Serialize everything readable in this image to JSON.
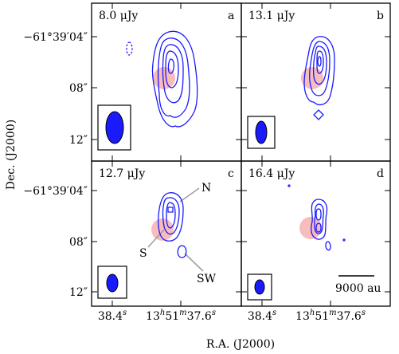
{
  "chart_data": {
    "type": "contour-map-grid",
    "xlabel": "R.A. (J2000)",
    "ylabel": "Dec. (J2000)",
    "x_tick_labels": [
      "38.4",
      "13",
      "51",
      "37.6"
    ],
    "y_tick_labels": [
      "−61°39′04″",
      "08″",
      "12″"
    ],
    "panels": [
      {
        "id": "a",
        "label": "a",
        "level": "8.0 μJy"
      },
      {
        "id": "b",
        "label": "b",
        "level": "13.1 μJy"
      },
      {
        "id": "c",
        "label": "c",
        "level": "12.7 μJy",
        "annotations": [
          "N",
          "S",
          "SW"
        ]
      },
      {
        "id": "d",
        "label": "d",
        "level": "16.4 μJy",
        "scale_bar": "9000 au"
      }
    ],
    "colors": {
      "contour": "#1a1aff",
      "core_marker": "#f4a6a6",
      "pointer": "#a0a0a0"
    }
  }
}
